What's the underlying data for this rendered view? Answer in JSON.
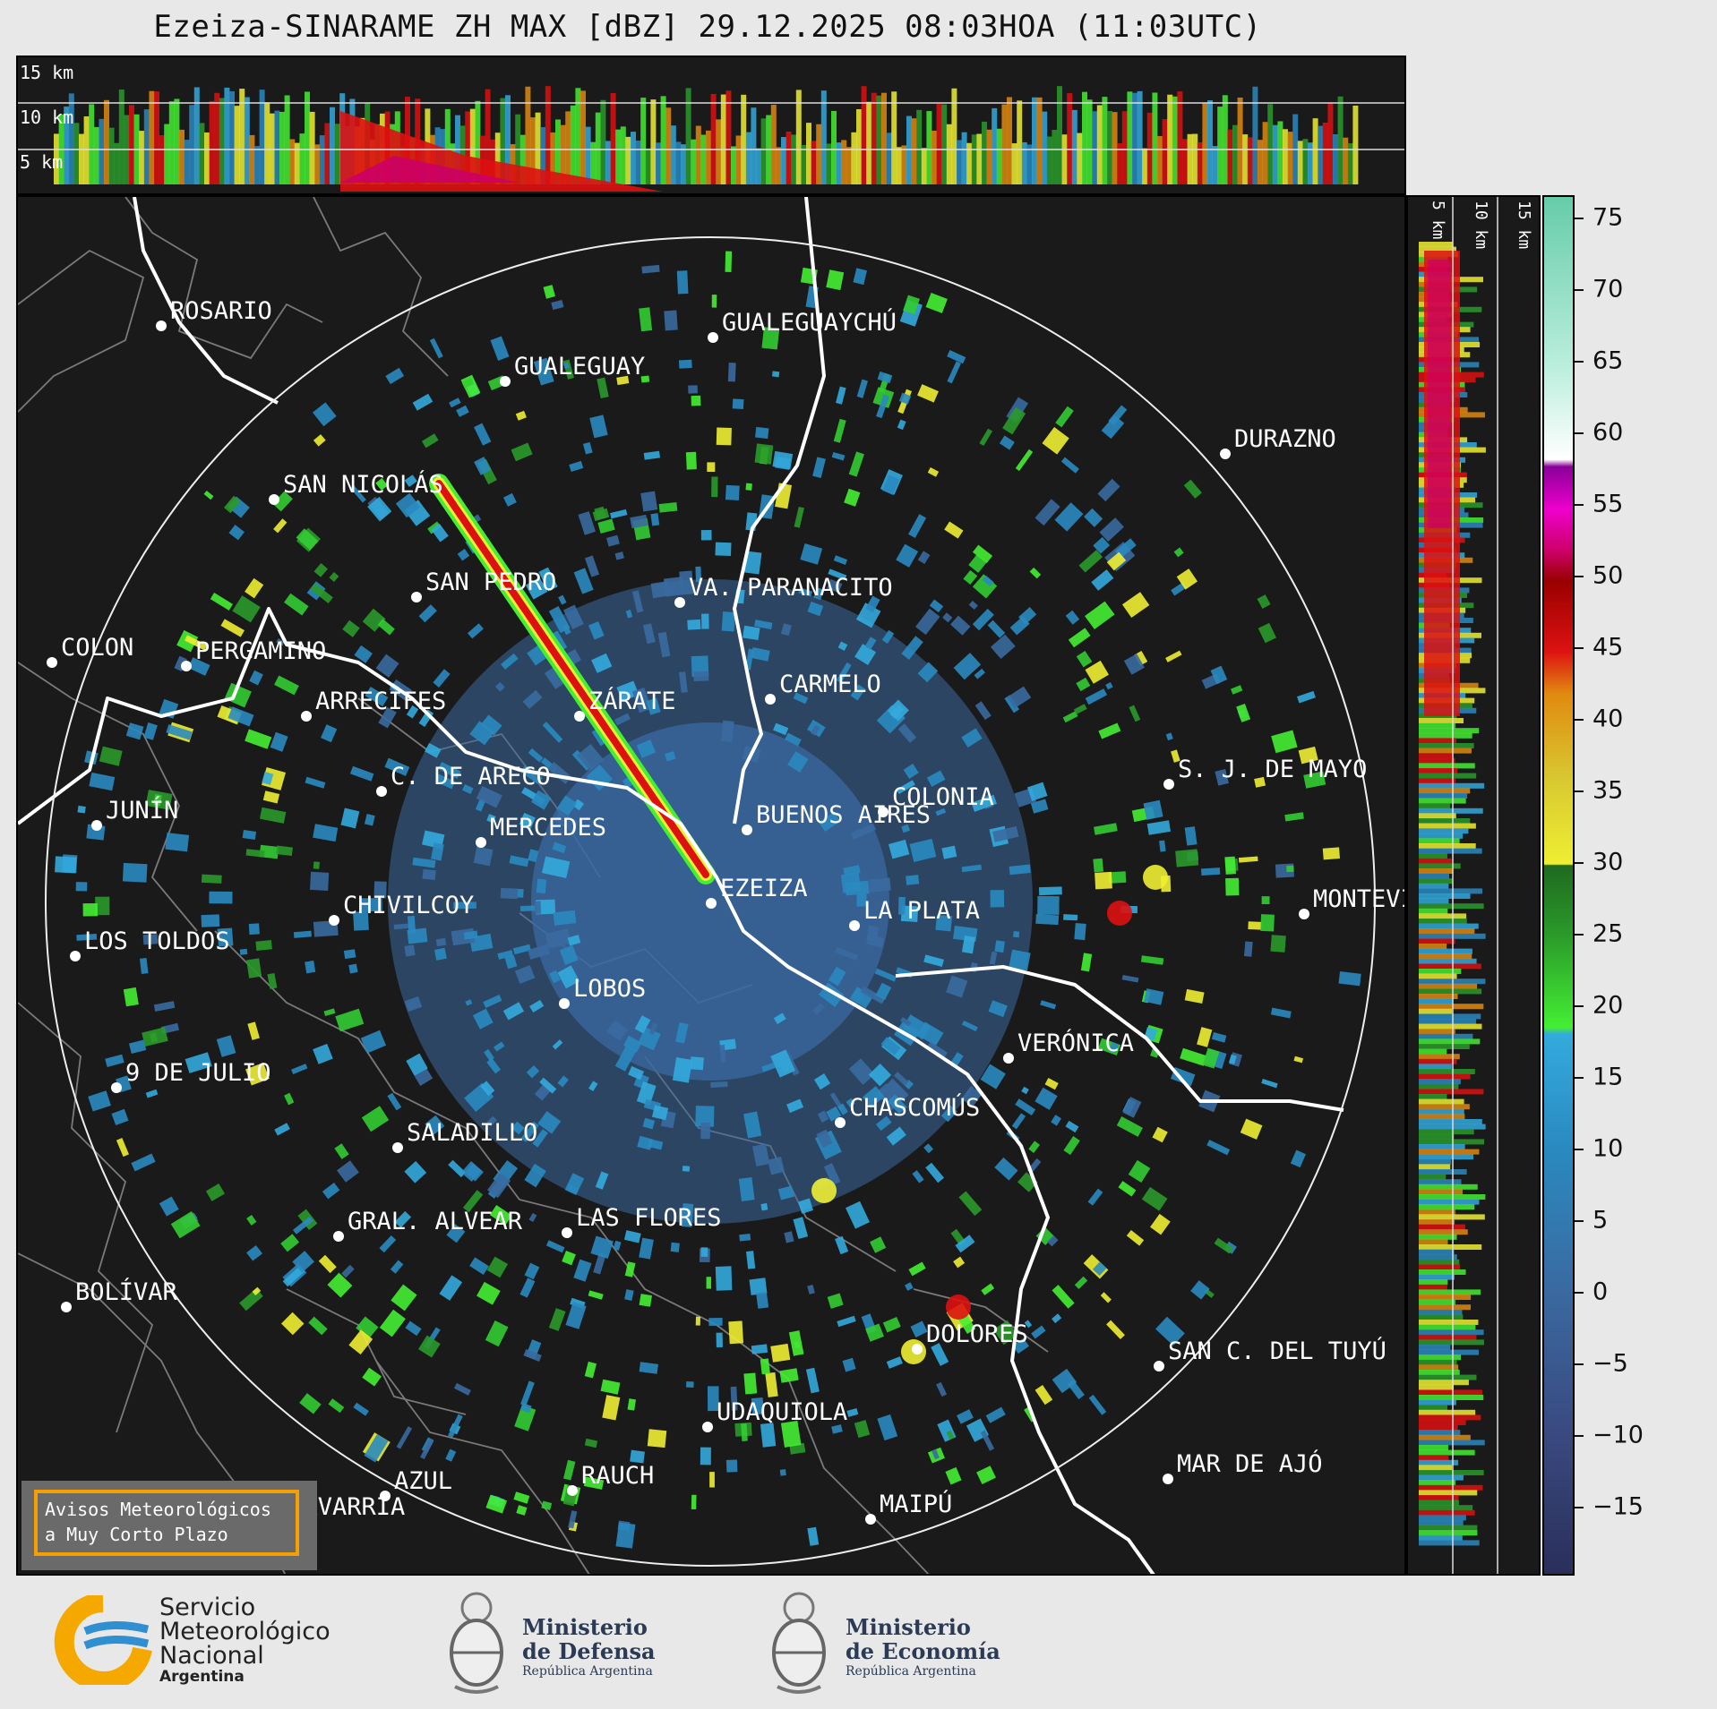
{
  "title": "Ezeiza-SINARAME ZH MAX [dBZ] 29.12.2025 08:03HOA (11:03UTC)",
  "top_panel": {
    "height_labels": [
      "15 km",
      "10 km",
      "5 km"
    ]
  },
  "side_panel": {
    "height_labels": [
      "5 km",
      "10 km",
      "15 km"
    ]
  },
  "cities": [
    {
      "name": "ROSARIO"
    },
    {
      "name": "GUALEGUAYCHÚ"
    },
    {
      "name": "GUALEGUAY"
    },
    {
      "name": "SAN NICOLÁS"
    },
    {
      "name": "DURAZNO"
    },
    {
      "name": "SAN PEDRO"
    },
    {
      "name": "VA. PARANACITO"
    },
    {
      "name": "COLON"
    },
    {
      "name": "PERGAMINO"
    },
    {
      "name": "CARMELO"
    },
    {
      "name": "ARRECIFES"
    },
    {
      "name": "ZÁRATE"
    },
    {
      "name": "S. J. DE MAYO"
    },
    {
      "name": "C. DE ARECO"
    },
    {
      "name": "COLONIA"
    },
    {
      "name": "JUNÍN"
    },
    {
      "name": "BUENOS AIRES"
    },
    {
      "name": "MERCEDES"
    },
    {
      "name": "MONTEVIDEO"
    },
    {
      "name": "EZEIZA"
    },
    {
      "name": "CHIVILCOY"
    },
    {
      "name": "LA PLATA"
    },
    {
      "name": "LOS TOLDOS"
    },
    {
      "name": "LOBOS"
    },
    {
      "name": "VERÓNICA"
    },
    {
      "name": "9 DE JULIO"
    },
    {
      "name": "CHASCOMÚS"
    },
    {
      "name": "SALADILLO"
    },
    {
      "name": "GRAL. ALVEAR"
    },
    {
      "name": "LAS FLORES"
    },
    {
      "name": "BOLÍVAR"
    },
    {
      "name": "DOLORES"
    },
    {
      "name": "SAN C. DEL TUYÚ"
    },
    {
      "name": "UDAQUIOLA"
    },
    {
      "name": "MAR DE AJÓ"
    },
    {
      "name": "AZUL"
    },
    {
      "name": "RAUCH"
    },
    {
      "name": "OLAVARRÍA"
    },
    {
      "name": "MAIPÚ"
    }
  ],
  "warning_box": {
    "line1": "Avisos Meteorológicos",
    "line2": "a Muy Corto Plazo",
    "border_color": "#f5a000"
  },
  "colorbar": {
    "unit": "dBZ",
    "ticks": [
      "75",
      "70",
      "65",
      "60",
      "55",
      "50",
      "45",
      "40",
      "35",
      "30",
      "25",
      "20",
      "15",
      "10",
      "5",
      "0",
      "−5",
      "−10",
      "−15"
    ],
    "range": [
      -20,
      77
    ],
    "stops": [
      {
        "v": -20,
        "c": "#2a2f5a"
      },
      {
        "v": -10,
        "c": "#3a4a80"
      },
      {
        "v": 0,
        "c": "#3a6aa0"
      },
      {
        "v": 10,
        "c": "#2a8ac0"
      },
      {
        "v": 18,
        "c": "#33aadd"
      },
      {
        "v": 18.5,
        "c": "#44ee33"
      },
      {
        "v": 25,
        "c": "#2a9a2a"
      },
      {
        "v": 29.9,
        "c": "#1f6a1f"
      },
      {
        "v": 30,
        "c": "#eeee33"
      },
      {
        "v": 36,
        "c": "#d8c830"
      },
      {
        "v": 42,
        "c": "#e08a10"
      },
      {
        "v": 45,
        "c": "#dd1111"
      },
      {
        "v": 50,
        "c": "#990000"
      },
      {
        "v": 52,
        "c": "#cc0066"
      },
      {
        "v": 55,
        "c": "#ee00cc"
      },
      {
        "v": 58,
        "c": "#880099"
      },
      {
        "v": 58.5,
        "c": "#ffffff"
      },
      {
        "v": 65,
        "c": "#bbeedd"
      },
      {
        "v": 77,
        "c": "#66ccaa"
      }
    ]
  },
  "footer": {
    "smn": {
      "line1": "Servicio",
      "line2": "Meteorológico",
      "line3": "Nacional",
      "line4": "Argentina"
    },
    "defensa": {
      "line1": "Ministerio",
      "line2": "de Defensa",
      "line3": "República Argentina"
    },
    "economia": {
      "line1": "Ministerio",
      "line2": "de Economía",
      "line3": "República Argentina"
    }
  }
}
